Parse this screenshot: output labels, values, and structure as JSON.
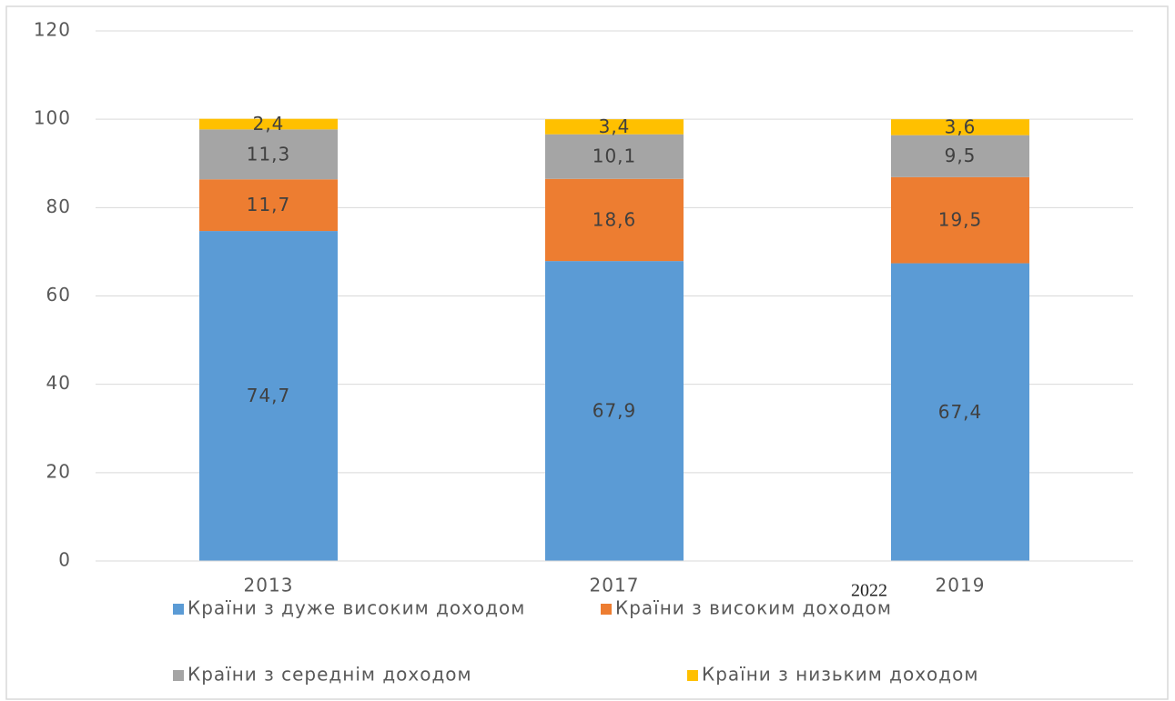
{
  "chart_data": {
    "type": "stacked_bar",
    "categories": [
      "2013",
      "2017",
      "2019"
    ],
    "series": [
      {
        "name": "Країни з дуже високим доходом",
        "color": "#5b9bd5",
        "values": [
          74.7,
          67.9,
          67.4
        ],
        "value_labels": [
          "74,7",
          "67,9",
          "67,4"
        ]
      },
      {
        "name": "Країни з високим доходом",
        "color": "#ed7d31",
        "values": [
          11.7,
          18.6,
          19.5
        ],
        "value_labels": [
          "11,7",
          "18,6",
          "19,5"
        ]
      },
      {
        "name": "Країни з середнім доходом",
        "color": "#a5a5a5",
        "values": [
          11.3,
          10.1,
          9.5
        ],
        "value_labels": [
          "11,3",
          "10,1",
          "9,5"
        ]
      },
      {
        "name": "Країни з низьким доходом",
        "color": "#ffc000",
        "values": [
          2.4,
          3.4,
          3.6
        ],
        "value_labels": [
          "2,4",
          "3,4",
          "3,6"
        ]
      }
    ],
    "ylim": [
      0,
      120
    ],
    "yticks": [
      0,
      20,
      40,
      60,
      80,
      100,
      120
    ],
    "grid": true,
    "legend": "bottom",
    "annotation": "2022"
  }
}
